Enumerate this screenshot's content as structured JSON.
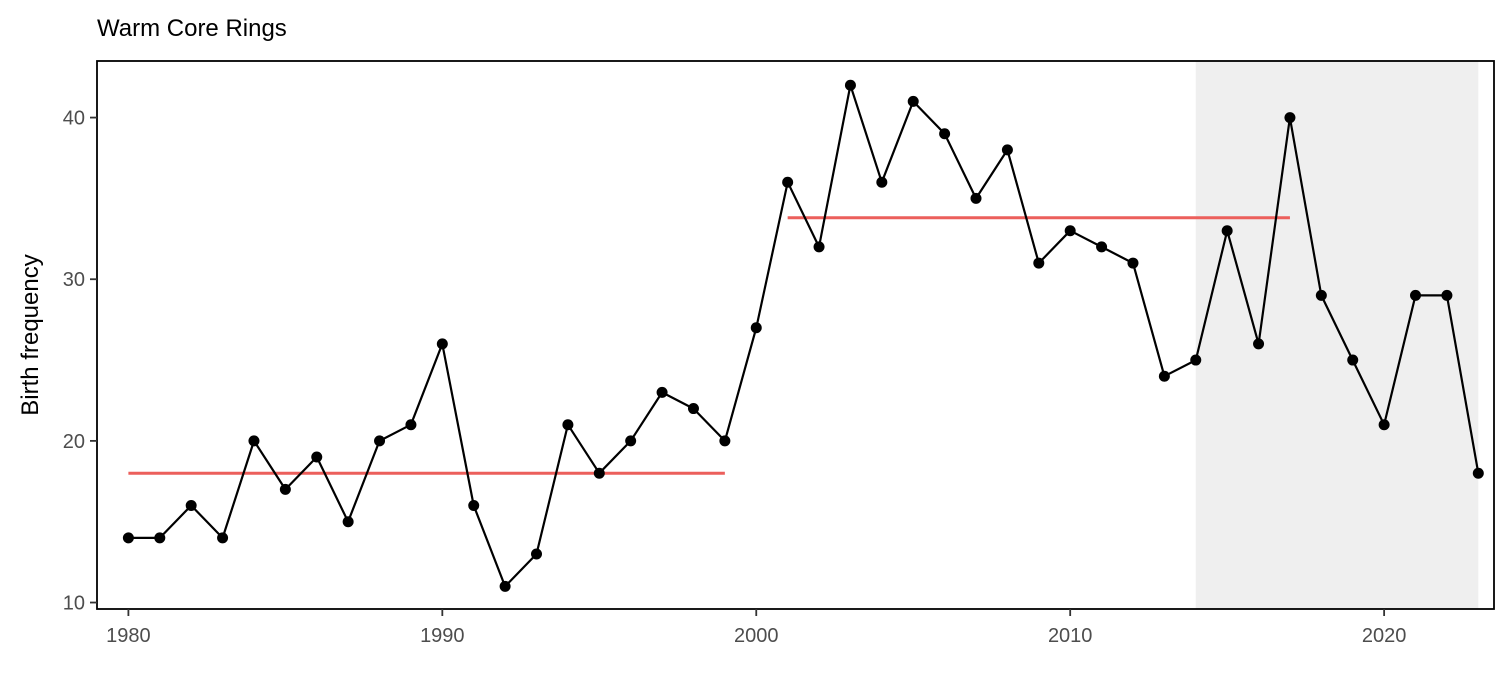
{
  "chart_data": {
    "type": "line",
    "title": "Warm Core Rings",
    "xlabel": "",
    "ylabel": "Birth frequency",
    "xlim": [
      1979,
      2023.5
    ],
    "ylim": [
      9.6,
      43.5
    ],
    "xticks": [
      1980,
      1990,
      2000,
      2010,
      2020
    ],
    "yticks": [
      10,
      20,
      30,
      40
    ],
    "x": [
      1980,
      1981,
      1982,
      1983,
      1984,
      1985,
      1986,
      1987,
      1988,
      1989,
      1990,
      1991,
      1992,
      1993,
      1994,
      1995,
      1996,
      1997,
      1998,
      1999,
      2000,
      2001,
      2002,
      2003,
      2004,
      2005,
      2006,
      2007,
      2008,
      2009,
      2010,
      2011,
      2012,
      2013,
      2014,
      2015,
      2016,
      2017,
      2018,
      2019,
      2020,
      2021,
      2022,
      2023
    ],
    "y": [
      14,
      14,
      16,
      14,
      20,
      17,
      19,
      15,
      20,
      21,
      26,
      16,
      11,
      13,
      21,
      18,
      20,
      23,
      22,
      20,
      27,
      36,
      32,
      42,
      36,
      41,
      39,
      35,
      38,
      31,
      33,
      32,
      31,
      24,
      25,
      33,
      26,
      40,
      29,
      25,
      21,
      29,
      29,
      18
    ],
    "mean_segments": [
      {
        "x0": 1980,
        "x1": 1999,
        "y": 18
      },
      {
        "x0": 2001,
        "x1": 2017,
        "y": 33.8
      }
    ],
    "shaded_region": {
      "x0": 2014,
      "x1": 2023
    },
    "colors": {
      "line": "#000000",
      "points": "#000000",
      "mean": "#ec5f5b",
      "shade": "#efefef"
    },
    "grid": false,
    "legend": "none"
  }
}
